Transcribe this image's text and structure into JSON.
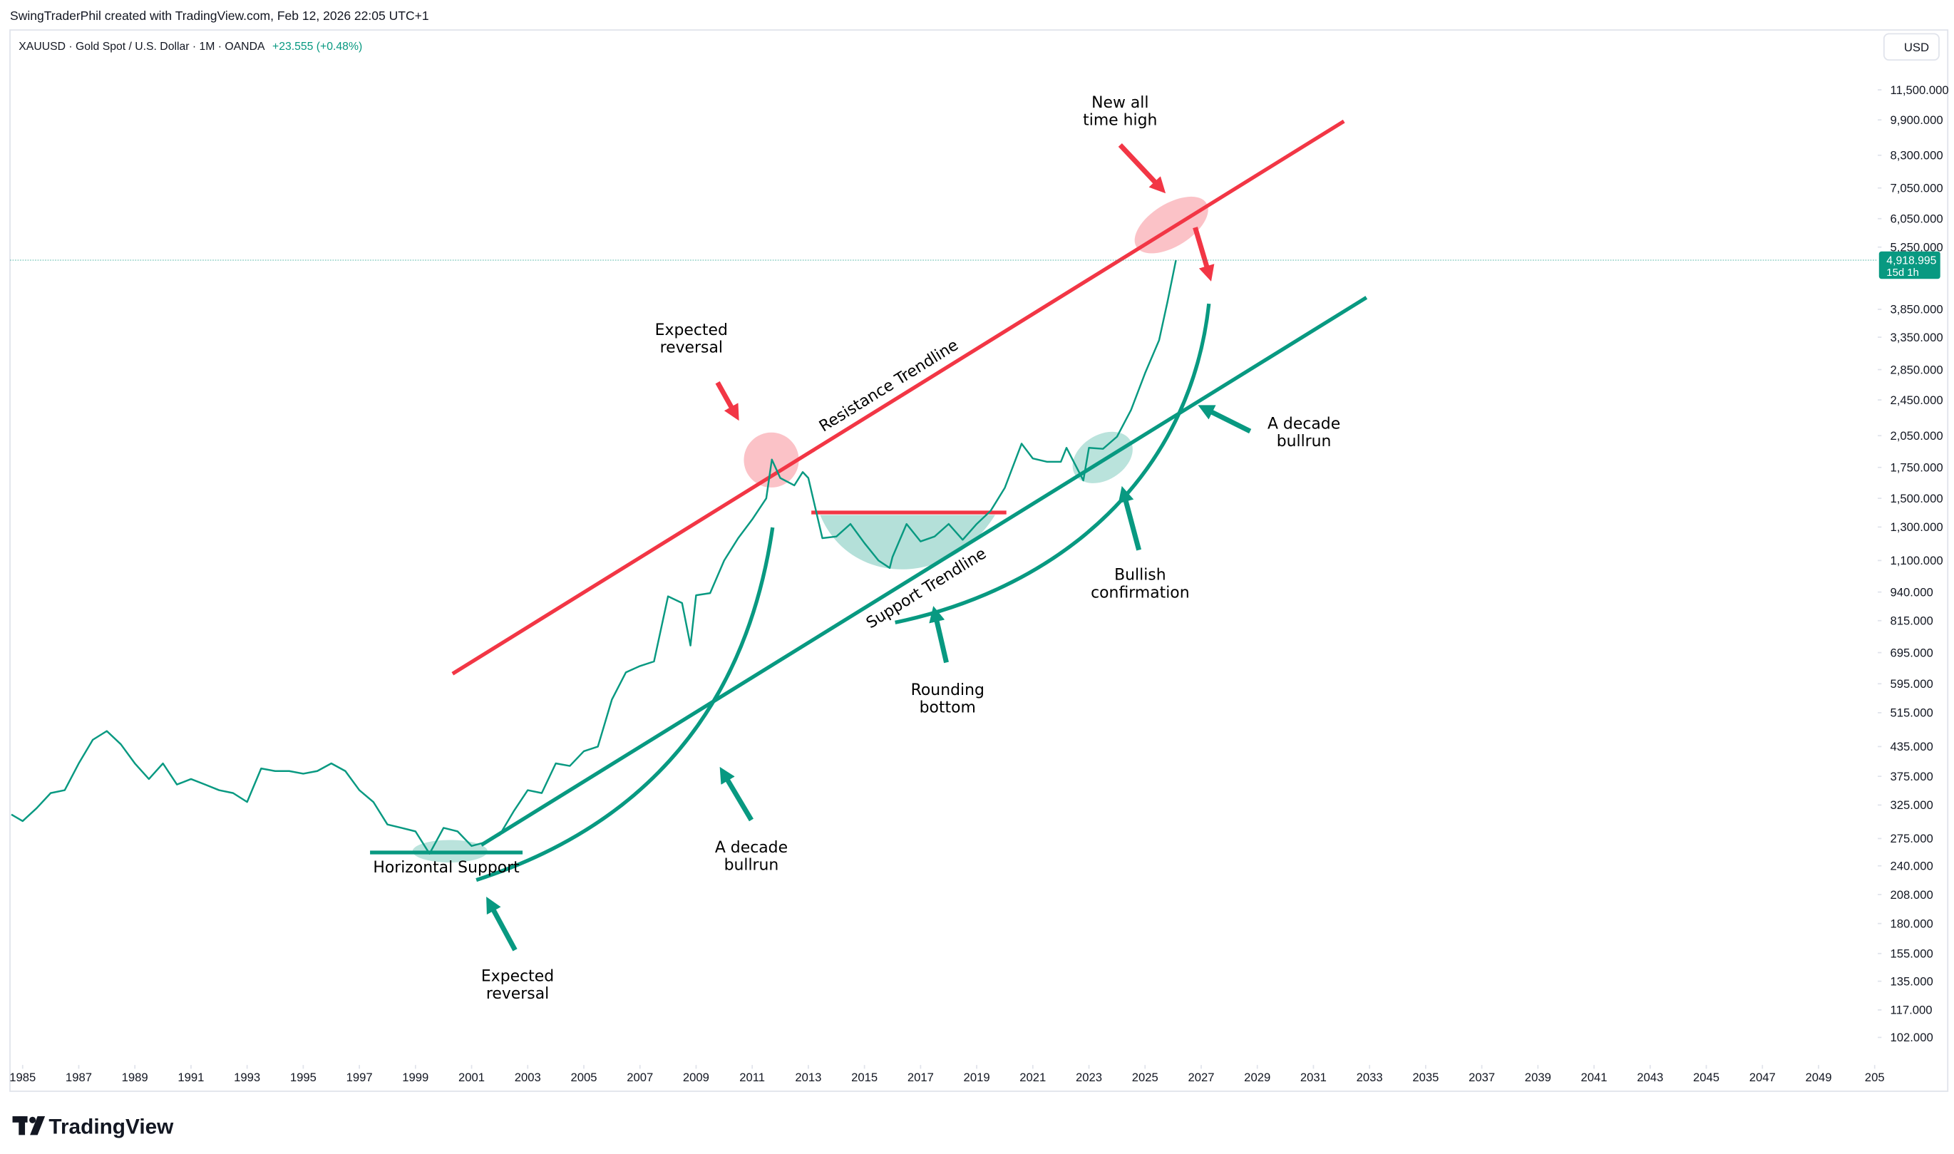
{
  "header": {
    "author_line": "SwingTraderPhil created with TradingView.com, Feb 12, 2026 22:05 UTC+1",
    "symbol": "XAUUSD · Gold Spot / U.S. Dollar · 1M · OANDA",
    "change": "+23.555 (+0.48%)",
    "currency": "USD",
    "logo": "TradingView"
  },
  "chart_data": {
    "type": "line",
    "log_scale": true,
    "grid": false,
    "xlim": [
      1984.55,
      2051.11
    ],
    "ylim": [
      88.9,
      15500
    ],
    "xticks": [
      1985,
      1987,
      1989,
      1991,
      1993,
      1995,
      1997,
      1999,
      2001,
      2003,
      2005,
      2007,
      2009,
      2011,
      2013,
      2015,
      2017,
      2019,
      2021,
      2023,
      2025,
      2027,
      2029,
      2031,
      2033,
      2035,
      2037,
      2039,
      2041,
      2043,
      2045,
      2047,
      2049,
      {
        "value": 2051,
        "label": "205"
      }
    ],
    "yticks": [
      {
        "value": 102,
        "label": "102.000"
      },
      {
        "value": 117,
        "label": "117.000"
      },
      {
        "value": 135,
        "label": "135.000"
      },
      {
        "value": 155,
        "label": "155.000"
      },
      {
        "value": 180,
        "label": "180.000"
      },
      {
        "value": 208,
        "label": "208.000"
      },
      {
        "value": 240,
        "label": "240.000"
      },
      {
        "value": 275,
        "label": "275.000"
      },
      {
        "value": 325,
        "label": "325.000"
      },
      {
        "value": 375,
        "label": "375.000"
      },
      {
        "value": 435,
        "label": "435.000"
      },
      {
        "value": 515,
        "label": "515.000"
      },
      {
        "value": 595,
        "label": "595.000"
      },
      {
        "value": 695,
        "label": "695.000"
      },
      {
        "value": 815,
        "label": "815.000"
      },
      {
        "value": 940,
        "label": "940.000"
      },
      {
        "value": 1100,
        "label": "1,100.000"
      },
      {
        "value": 1300,
        "label": "1,300.000"
      },
      {
        "value": 1500,
        "label": "1,500.000"
      },
      {
        "value": 1750,
        "label": "1,750.000"
      },
      {
        "value": 2050,
        "label": "2,050.000"
      },
      {
        "value": 2450,
        "label": "2,450.000"
      },
      {
        "value": 2850,
        "label": "2,850.000"
      },
      {
        "value": 3350,
        "label": "3,350.000"
      },
      {
        "value": 3850,
        "label": "3,850.000"
      },
      {
        "value": 5250,
        "label": "5,250.000"
      },
      {
        "value": 6050,
        "label": "6,050.000"
      },
      {
        "value": 7050,
        "label": "7,050.000"
      },
      {
        "value": 8300,
        "label": "8,300.000"
      },
      {
        "value": 9900,
        "label": "9,900.000"
      },
      {
        "value": 11500,
        "label": "11,500.000"
      }
    ],
    "x": [
      1984.6,
      1985,
      1985.5,
      1986,
      1986.5,
      1987,
      1987.5,
      1988,
      1988.5,
      1989,
      1989.5,
      1990,
      1990.5,
      1991,
      1991.5,
      1992,
      1992.5,
      1993,
      1993.5,
      1994,
      1994.5,
      1995,
      1995.5,
      1996,
      1996.5,
      1997,
      1997.5,
      1998,
      1998.5,
      1999,
      1999.5,
      2000,
      2000.5,
      2001,
      2001.5,
      2002,
      2002.5,
      2003,
      2003.5,
      2004,
      2004.5,
      2005,
      2005.5,
      2006,
      2006.5,
      2007,
      2007.5,
      2008,
      2008.5,
      2008.8,
      2009,
      2009.5,
      2010,
      2010.5,
      2011,
      2011.5,
      2011.7,
      2012,
      2012.5,
      2012.8,
      2013,
      2013.5,
      2014,
      2014.5,
      2015,
      2015.5,
      2015.9,
      2016,
      2016.5,
      2017,
      2017.5,
      2018,
      2018.5,
      2019,
      2019.5,
      2020,
      2020.6,
      2021,
      2021.5,
      2022,
      2022.2,
      2022.8,
      2023,
      2023.5,
      2024,
      2024.5,
      2025,
      2025.5,
      2025.8,
      2026.1
    ],
    "series": [
      {
        "name": "XAUUSD",
        "color": "#089981",
        "values": [
          310,
          300,
          320,
          345,
          350,
          400,
          450,
          470,
          440,
          400,
          370,
          400,
          360,
          370,
          360,
          350,
          345,
          330,
          390,
          385,
          385,
          380,
          385,
          400,
          385,
          350,
          330,
          295,
          290,
          285,
          255,
          290,
          285,
          265,
          270,
          280,
          315,
          350,
          345,
          400,
          395,
          425,
          435,
          550,
          630,
          650,
          665,
          920,
          890,
          720,
          925,
          935,
          1100,
          1230,
          1350,
          1500,
          1820,
          1660,
          1600,
          1710,
          1660,
          1230,
          1240,
          1320,
          1200,
          1100,
          1060,
          1120,
          1320,
          1210,
          1240,
          1320,
          1220,
          1320,
          1410,
          1580,
          1970,
          1830,
          1800,
          1800,
          1930,
          1640,
          1930,
          1920,
          2040,
          2330,
          2800,
          3300,
          4000,
          4918.995
        ]
      }
    ],
    "last_price": {
      "value": 4918.995,
      "label": "4,918.995"
    },
    "countdown": "15d 1h"
  },
  "annotations": [
    {
      "lines": [
        "New all",
        "time high"
      ]
    },
    {
      "lines": [
        "Expected",
        "reversal"
      ]
    },
    {
      "lines": [
        "Resistance Trendline"
      ]
    },
    {
      "lines": [
        "A decade",
        "bullrun"
      ]
    },
    {
      "lines": [
        "Bullish",
        "confirmation"
      ]
    },
    {
      "lines": [
        "Support Trendline"
      ]
    },
    {
      "lines": [
        "Rounding",
        "bottom"
      ]
    },
    {
      "lines": [
        "A decade",
        "bullrun"
      ]
    },
    {
      "lines": [
        "Horizontal Support"
      ]
    },
    {
      "lines": [
        "Expected",
        "reversal"
      ]
    }
  ]
}
